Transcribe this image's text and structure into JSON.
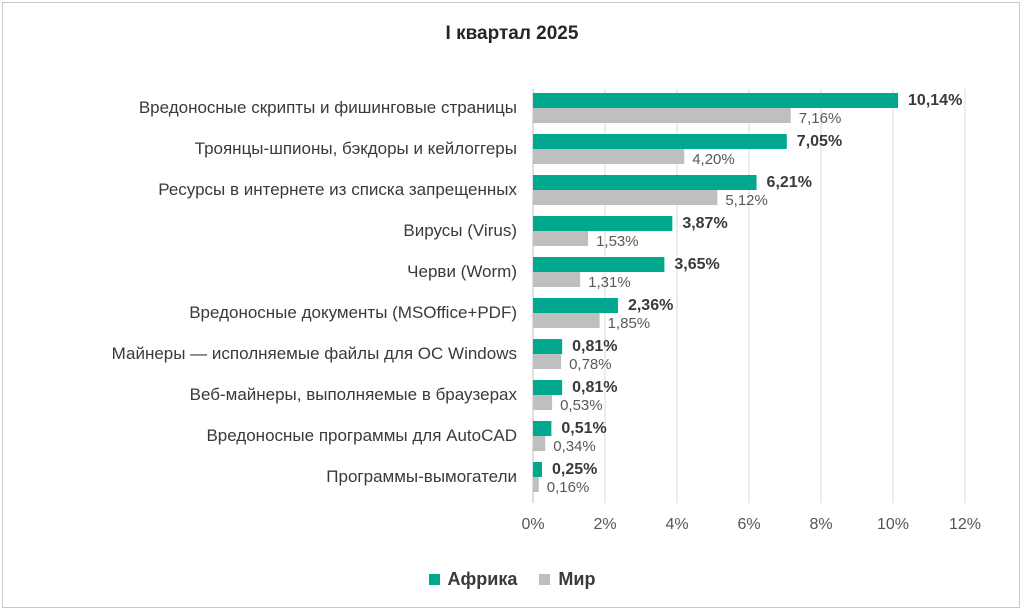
{
  "chart_data": {
    "type": "bar",
    "orientation": "horizontal",
    "title": "I квартал 2025",
    "categories": [
      "Вредоносные скрипты и фишинговые страницы",
      "Троянцы-шпионы, бэкдоры и кейлоггеры",
      "Ресурсы в интернете из списка запрещенных",
      "Вирусы (Virus)",
      "Черви (Worm)",
      "Вредоносные документы (MSOffice+PDF)",
      "Майнеры — исполняемые файлы для ОС Windows",
      "Веб-майнеры, выполняемые в браузерах",
      "Вредоносные программы для AutoCAD",
      "Программы-вымогатели"
    ],
    "series": [
      {
        "name": "Африка",
        "color": "#00A88E",
        "values": [
          10.14,
          7.05,
          6.21,
          3.87,
          3.65,
          2.36,
          0.81,
          0.81,
          0.51,
          0.25
        ],
        "labels": [
          "10,14%",
          "7,05%",
          "6,21%",
          "3,87%",
          "3,65%",
          "2,36%",
          "0,81%",
          "0,81%",
          "0,51%",
          "0,25%"
        ]
      },
      {
        "name": "Мир",
        "color": "#BFBFBF",
        "values": [
          7.16,
          4.2,
          5.12,
          1.53,
          1.31,
          1.85,
          0.78,
          0.53,
          0.34,
          0.16
        ],
        "labels": [
          "7,16%",
          "4,20%",
          "5,12%",
          "1,53%",
          "1,31%",
          "1,85%",
          "0,78%",
          "0,53%",
          "0,34%",
          "0,16%"
        ]
      }
    ],
    "xlim": [
      0,
      12
    ],
    "xticks": [
      0,
      2,
      4,
      6,
      8,
      10,
      12
    ],
    "xtick_labels": [
      "0%",
      "2%",
      "4%",
      "6%",
      "8%",
      "10%",
      "12%"
    ],
    "grid": "vertical",
    "legend_position": "bottom"
  }
}
